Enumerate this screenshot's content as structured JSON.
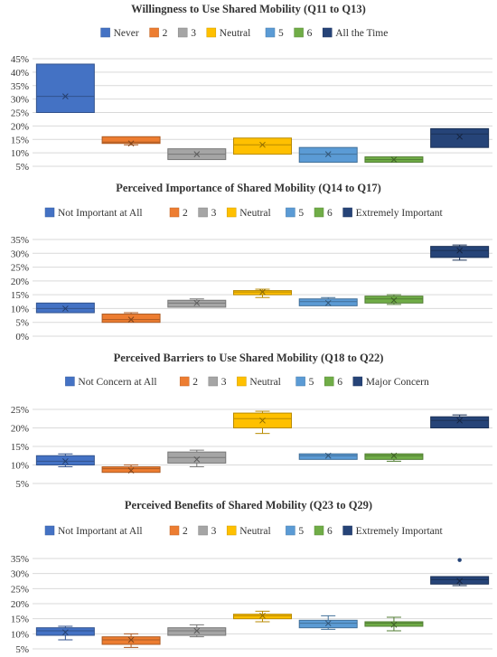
{
  "chart_data": [
    {
      "type": "box",
      "title": "Willingness to Use Shared Mobility (Q11 to Q13)",
      "legend_position": "top",
      "grid": true,
      "ylim": [
        5,
        45
      ],
      "yticks": [
        "5%",
        "10%",
        "15%",
        "20%",
        "25%",
        "30%",
        "35%",
        "40%",
        "45%"
      ],
      "ytick_values": [
        5,
        10,
        15,
        20,
        25,
        30,
        35,
        40,
        45
      ],
      "series": [
        {
          "name": "Never",
          "color": "#4472C4",
          "min": 25,
          "q1": 25,
          "median": 31,
          "mean": 31,
          "q3": 43,
          "max": 43,
          "outliers": []
        },
        {
          "name": "2",
          "color": "#ED7D31",
          "min": 13,
          "q1": 13.5,
          "median": 14,
          "mean": 13.5,
          "q3": 16,
          "max": 16,
          "outliers": []
        },
        {
          "name": "3",
          "color": "#A5A5A5",
          "min": 7.5,
          "q1": 7.5,
          "median": 9.5,
          "mean": 9.5,
          "q3": 11.5,
          "max": 11.5,
          "outliers": []
        },
        {
          "name": "Neutral",
          "color": "#FFC000",
          "min": 9.5,
          "q1": 9.5,
          "median": 13,
          "mean": 13,
          "q3": 15.5,
          "max": 15.5,
          "outliers": []
        },
        {
          "name": "5",
          "color": "#5B9BD5",
          "min": 6.5,
          "q1": 6.5,
          "median": 9.5,
          "mean": 9.5,
          "q3": 12,
          "max": 12,
          "outliers": []
        },
        {
          "name": "6",
          "color": "#70AD47",
          "min": 6.5,
          "q1": 6.5,
          "median": 7.5,
          "mean": 7.5,
          "q3": 8.5,
          "max": 8.5,
          "outliers": []
        },
        {
          "name": "All the Time",
          "color": "#264478",
          "min": 12,
          "q1": 12,
          "median": 17,
          "mean": 16,
          "q3": 19,
          "max": 19,
          "outliers": []
        }
      ]
    },
    {
      "type": "box",
      "title": "Perceived Importance of Shared Mobility (Q14 to Q17)",
      "legend_position": "top",
      "grid": true,
      "ylim": [
        0,
        35
      ],
      "yticks": [
        "0%",
        "5%",
        "10%",
        "15%",
        "20%",
        "25%",
        "30%",
        "35%"
      ],
      "ytick_values": [
        0,
        5,
        10,
        15,
        20,
        25,
        30,
        35
      ],
      "series": [
        {
          "name": "Not Important at All",
          "color": "#4472C4",
          "min": 8.5,
          "q1": 8.5,
          "median": 10,
          "mean": 10,
          "q3": 12,
          "max": 12,
          "outliers": []
        },
        {
          "name": "2",
          "color": "#ED7D31",
          "min": 5,
          "q1": 5,
          "median": 6,
          "mean": 6,
          "q3": 8,
          "max": 8.5,
          "outliers": []
        },
        {
          "name": "3",
          "color": "#A5A5A5",
          "min": 10.5,
          "q1": 10.5,
          "median": 12,
          "mean": 12,
          "q3": 13,
          "max": 13.5,
          "outliers": []
        },
        {
          "name": "Neutral",
          "color": "#FFC000",
          "min": 14,
          "q1": 15,
          "median": 16,
          "mean": 16,
          "q3": 16.5,
          "max": 17,
          "outliers": []
        },
        {
          "name": "5",
          "color": "#5B9BD5",
          "min": 11,
          "q1": 11,
          "median": 12.5,
          "mean": 12,
          "q3": 13.5,
          "max": 14,
          "outliers": []
        },
        {
          "name": "6",
          "color": "#70AD47",
          "min": 11.5,
          "q1": 12,
          "median": 13.5,
          "mean": 13,
          "q3": 14.5,
          "max": 15,
          "outliers": []
        },
        {
          "name": "Extremely Important",
          "color": "#264478",
          "min": 27.5,
          "q1": 28.5,
          "median": 31,
          "mean": 31,
          "q3": 32.5,
          "max": 33,
          "outliers": []
        }
      ]
    },
    {
      "type": "box",
      "title": "Perceived Barriers to Use Shared Mobility (Q18 to Q22)",
      "legend_position": "top",
      "grid": true,
      "ylim": [
        5,
        25
      ],
      "yticks": [
        "5%",
        "10%",
        "15%",
        "20%",
        "25%"
      ],
      "ytick_values": [
        5,
        10,
        15,
        20,
        25
      ],
      "series": [
        {
          "name": "Not Concern at All",
          "color": "#4472C4",
          "min": 9.5,
          "q1": 10,
          "median": 11,
          "mean": 11,
          "q3": 12.5,
          "max": 13,
          "outliers": []
        },
        {
          "name": "2",
          "color": "#ED7D31",
          "min": 8,
          "q1": 8,
          "median": 9,
          "mean": 8.5,
          "q3": 9.5,
          "max": 10,
          "outliers": []
        },
        {
          "name": "3",
          "color": "#A5A5A5",
          "min": 9.5,
          "q1": 10.5,
          "median": 12,
          "mean": 11.5,
          "q3": 13.5,
          "max": 14,
          "outliers": []
        },
        {
          "name": "Neutral",
          "color": "#FFC000",
          "min": 18.5,
          "q1": 20,
          "median": 22.5,
          "mean": 22,
          "q3": 24,
          "max": 24.5,
          "outliers": []
        },
        {
          "name": "5",
          "color": "#5B9BD5",
          "min": 11.5,
          "q1": 11.5,
          "median": 12.5,
          "mean": 12.5,
          "q3": 13,
          "max": 13,
          "outliers": []
        },
        {
          "name": "6",
          "color": "#70AD47",
          "min": 11,
          "q1": 11.5,
          "median": 12.5,
          "mean": 12.5,
          "q3": 13,
          "max": 13,
          "outliers": []
        },
        {
          "name": "Major Concern",
          "color": "#264478",
          "min": 20,
          "q1": 20,
          "median": 22,
          "mean": 22,
          "q3": 23,
          "max": 23.5,
          "outliers": []
        }
      ]
    },
    {
      "type": "box",
      "title": "Perceived Benefits of Shared Mobility (Q23 to Q29)",
      "legend_position": "top",
      "grid": true,
      "ylim": [
        5,
        35
      ],
      "yticks": [
        "5%",
        "10%",
        "15%",
        "20%",
        "25%",
        "30%",
        "35%"
      ],
      "ytick_values": [
        5,
        10,
        15,
        20,
        25,
        30,
        35
      ],
      "series": [
        {
          "name": "Not Important at All",
          "color": "#4472C4",
          "min": 8,
          "q1": 9.5,
          "median": 11,
          "mean": 10.5,
          "q3": 12,
          "max": 12.5,
          "outliers": []
        },
        {
          "name": "2",
          "color": "#ED7D31",
          "min": 5.5,
          "q1": 6.5,
          "median": 8,
          "mean": 8,
          "q3": 9,
          "max": 10,
          "outliers": []
        },
        {
          "name": "3",
          "color": "#A5A5A5",
          "min": 9,
          "q1": 9.5,
          "median": 11,
          "mean": 11,
          "q3": 12,
          "max": 13,
          "outliers": []
        },
        {
          "name": "Neutral",
          "color": "#FFC000",
          "min": 14,
          "q1": 15,
          "median": 16,
          "mean": 16,
          "q3": 16.5,
          "max": 17.5,
          "outliers": []
        },
        {
          "name": "5",
          "color": "#5B9BD5",
          "min": 11.5,
          "q1": 12,
          "median": 13.5,
          "mean": 13.5,
          "q3": 14.5,
          "max": 16,
          "outliers": []
        },
        {
          "name": "6",
          "color": "#70AD47",
          "min": 11,
          "q1": 12.5,
          "median": 13.5,
          "mean": 13,
          "q3": 14,
          "max": 15.5,
          "outliers": []
        },
        {
          "name": "Extremely Important",
          "color": "#264478",
          "min": 26,
          "q1": 26.5,
          "median": 28,
          "mean": 27.5,
          "q3": 29,
          "max": 29,
          "outliers": [
            34.5
          ]
        }
      ]
    }
  ]
}
